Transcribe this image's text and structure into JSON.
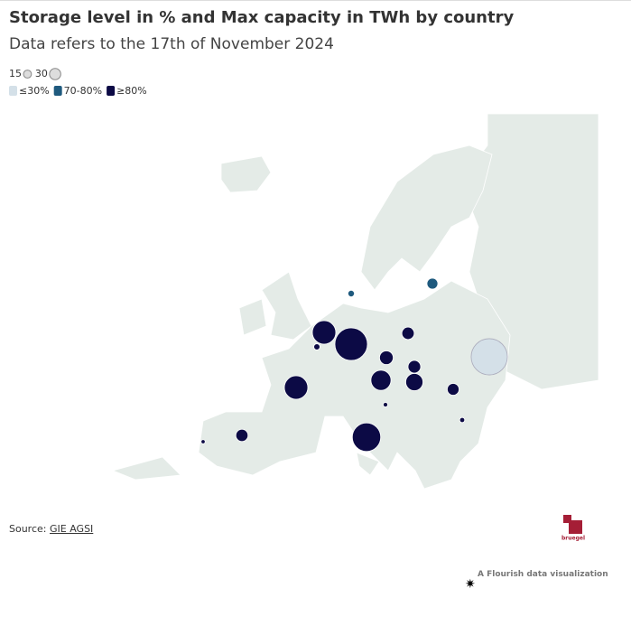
{
  "title": "Storage level in % and Max capacity in TWh by country",
  "subtitle": "Data refers to the 17th of November 2024",
  "size_legend": [
    15,
    30
  ],
  "chart_data": {
    "type": "bubble-map",
    "series": [
      {
        "name": "≤30%",
        "color": "#d4e0e8",
        "values": [
          310
        ]
      },
      {
        "name": "70-80%",
        "color": "#1f5a7e",
        "values": [
          28,
          10
        ]
      },
      {
        "name": "≥80%",
        "color": "#0c0a45",
        "values": [
          130,
          9,
          250,
          36,
          44,
          38,
          95,
          70,
          130,
          33,
          5,
          6,
          190,
          35,
          4
        ]
      }
    ]
  },
  "source_label": "Source:",
  "source_link": "GIE AGSI",
  "logo": "bruegel",
  "credit": "A Flourish data visualization"
}
